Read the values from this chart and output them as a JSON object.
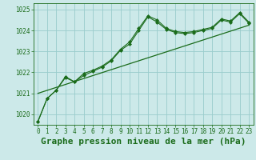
{
  "title": "Graphe pression niveau de la mer (hPa)",
  "background_color": "#cce9e9",
  "grid_color": "#99cccc",
  "line_color": "#1a6b1a",
  "marker_color": "#1a6b1a",
  "xlim": [
    -0.5,
    23.5
  ],
  "ylim": [
    1019.5,
    1025.3
  ],
  "yticks": [
    1020,
    1021,
    1022,
    1023,
    1024,
    1025
  ],
  "xtick_labels": [
    "0",
    "1",
    "2",
    "3",
    "4",
    "5",
    "6",
    "7",
    "8",
    "9",
    "10",
    "11",
    "12",
    "13",
    "14",
    "15",
    "16",
    "17",
    "18",
    "19",
    "20",
    "21",
    "22",
    "23"
  ],
  "series1": [
    1019.65,
    1020.75,
    1021.15,
    1021.75,
    1021.55,
    1021.85,
    1022.05,
    1022.25,
    1022.55,
    1023.05,
    1023.35,
    1024.0,
    1024.65,
    1024.4,
    1024.05,
    1023.9,
    1023.85,
    1023.9,
    1024.0,
    1024.1,
    1024.5,
    1024.4,
    1024.8,
    1024.35
  ],
  "series2": [
    1019.65,
    1020.75,
    1021.15,
    1021.8,
    1021.55,
    1021.95,
    1022.1,
    1022.3,
    1022.6,
    1023.1,
    1023.45,
    1024.1,
    1024.7,
    1024.5,
    1024.1,
    1023.95,
    1023.9,
    1023.95,
    1024.05,
    1024.15,
    1024.55,
    1024.45,
    1024.85,
    1024.4
  ],
  "trend_x": [
    0,
    23
  ],
  "trend_y": [
    1021.0,
    1024.25
  ],
  "title_fontsize": 8,
  "tick_fontsize": 5.5,
  "figsize": [
    3.2,
    2.0
  ],
  "dpi": 100
}
